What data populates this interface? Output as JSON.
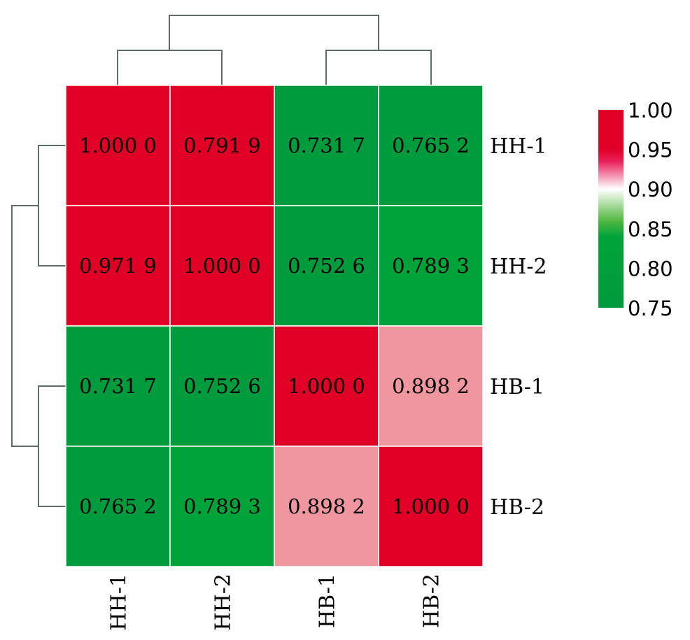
{
  "chart_data": {
    "type": "heatmap",
    "title": "",
    "rows": [
      "HH-1",
      "HH-2",
      "HB-1",
      "HB-2"
    ],
    "columns": [
      "HH-1",
      "HH-2",
      "HB-1",
      "HB-2"
    ],
    "values": [
      [
        1.0,
        0.7919,
        0.7317,
        0.7652
      ],
      [
        0.9719,
        1.0,
        0.7526,
        0.7893
      ],
      [
        0.7317,
        0.7526,
        1.0,
        0.8982
      ],
      [
        0.7652,
        0.7893,
        0.8982,
        1.0
      ]
    ],
    "cell_labels": [
      [
        "1.000 0",
        "0.791 9",
        "0.731 7",
        "0.765 2"
      ],
      [
        "0.971 9",
        "1.000 0",
        "0.752 6",
        "0.789 3"
      ],
      [
        "0.731 7",
        "0.752 6",
        "1.000 0",
        "0.898 2"
      ],
      [
        "0.765 2",
        "0.789 3",
        "0.898 2",
        "1.000 0"
      ]
    ],
    "cell_colors": [
      [
        "#e00025",
        "#e00025",
        "#009b3c",
        "#009b3c"
      ],
      [
        "#e00025",
        "#e00025",
        "#009b3c",
        "#00a33a"
      ],
      [
        "#009b3c",
        "#009b3c",
        "#e00025",
        "#f0969e"
      ],
      [
        "#009b3c",
        "#00a33a",
        "#f0969e",
        "#e00025"
      ]
    ],
    "colorbar": {
      "range": [
        0.75,
        1.0
      ],
      "ticks": [
        "1.00",
        "0.95",
        "0.90",
        "0.85",
        "0.80",
        "0.75"
      ],
      "stops": [
        {
          "value": 1.0,
          "color": "#e00025"
        },
        {
          "value": 0.95,
          "color": "#e00025"
        },
        {
          "value": 0.935,
          "color": "#e8205a"
        },
        {
          "value": 0.9,
          "color": "#ffffff"
        },
        {
          "value": 0.86,
          "color": "#52b840"
        },
        {
          "value": 0.84,
          "color": "#00a33a"
        },
        {
          "value": 0.75,
          "color": "#009b3c"
        }
      ]
    },
    "row_dendrogram": "left",
    "column_dendrogram": "top",
    "grid_color": "#ffffff"
  }
}
